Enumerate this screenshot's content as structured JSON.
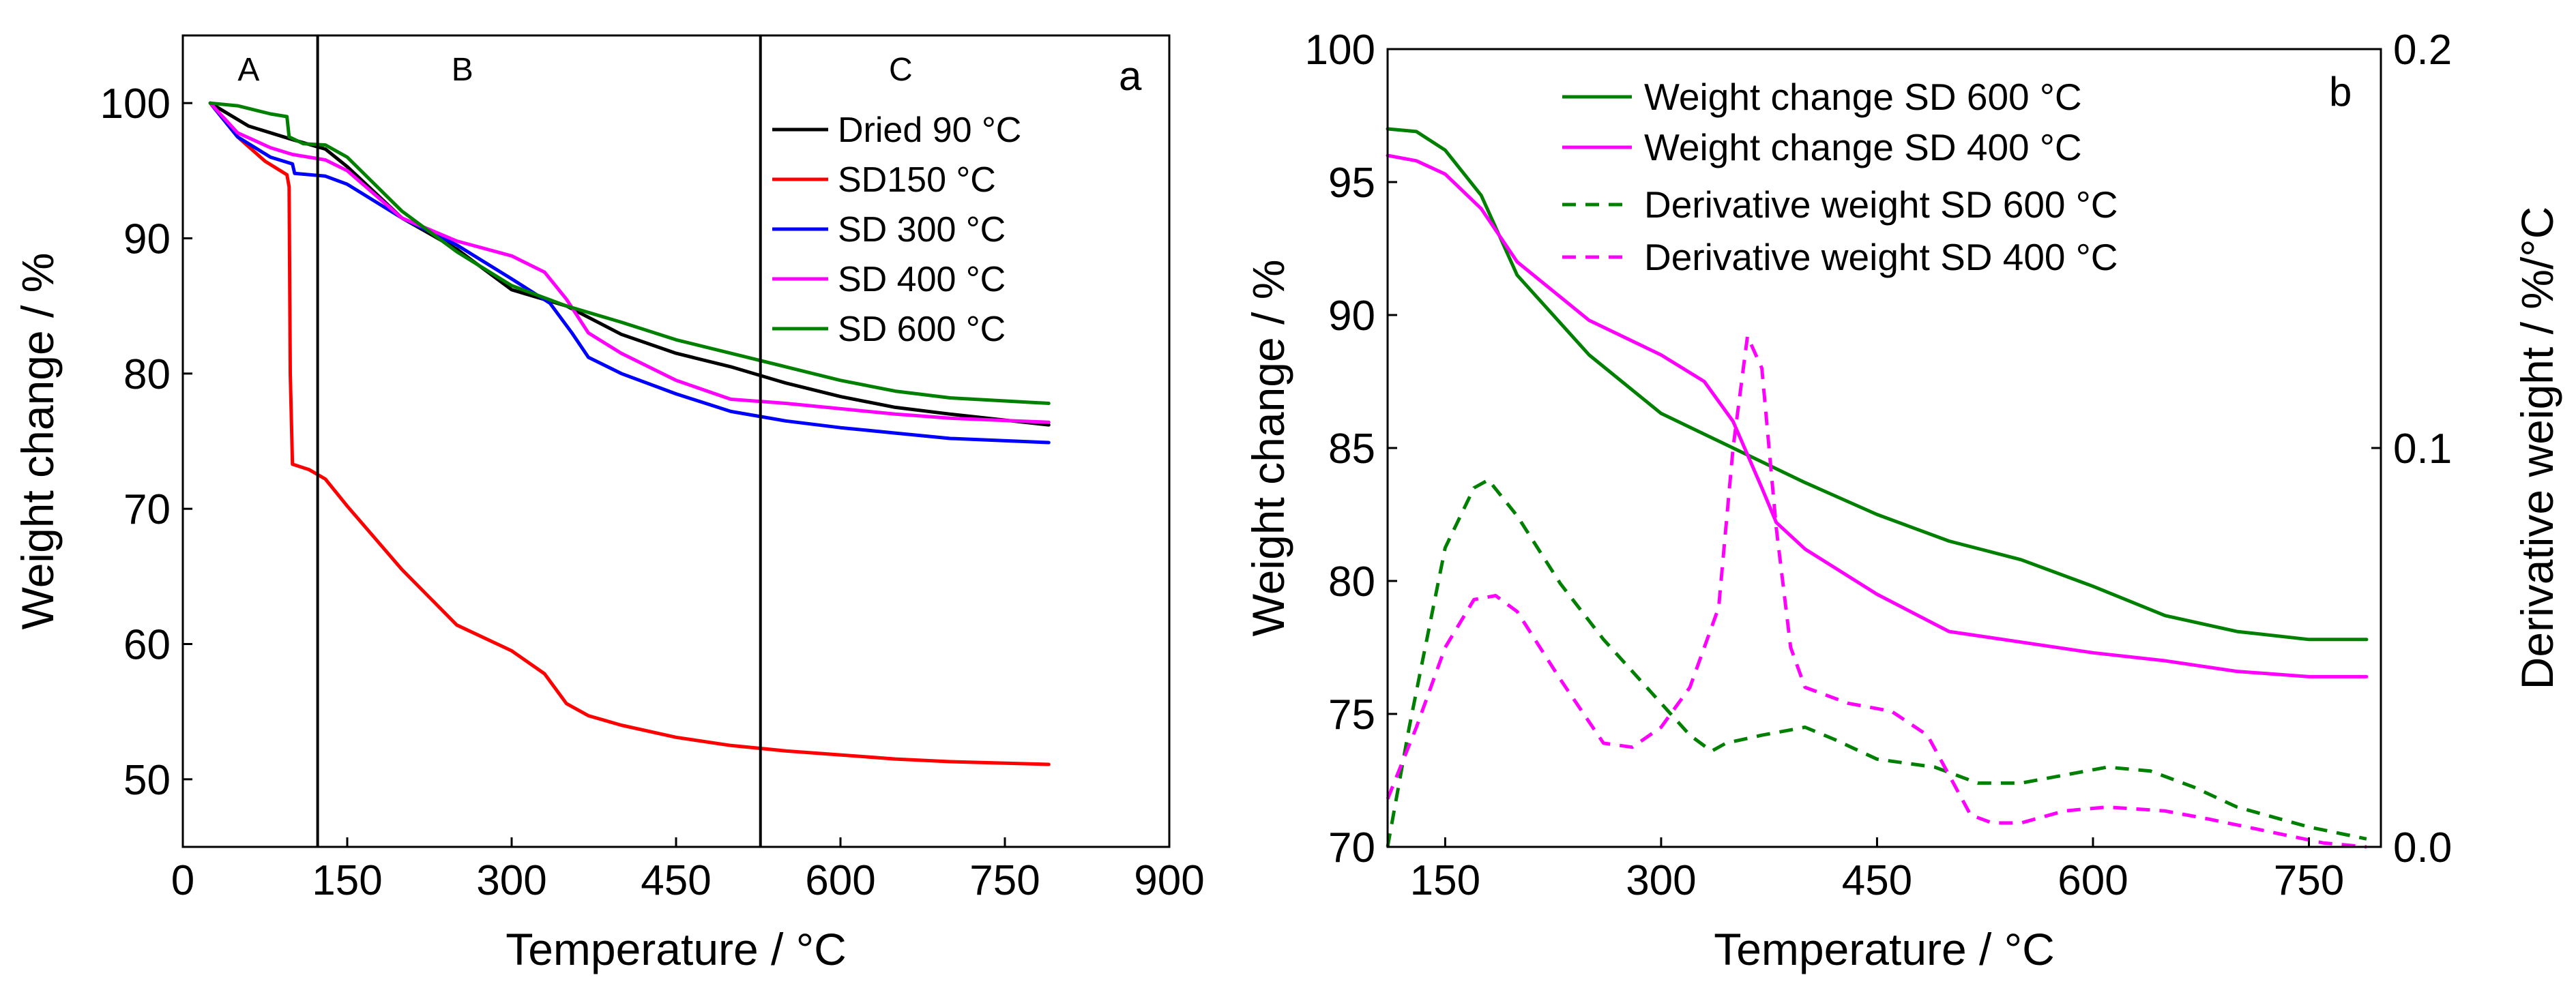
{
  "chart_data": [
    {
      "type": "line",
      "panel_label": "a",
      "xlabel": "Temperature / °C",
      "ylabel": "Weight change / %",
      "xlim": [
        0,
        900
      ],
      "ylim": [
        45,
        105
      ],
      "xticks": [
        0,
        150,
        300,
        450,
        600,
        750,
        900
      ],
      "yticks": [
        50,
        60,
        70,
        80,
        90,
        100
      ],
      "regions": [
        {
          "label": "A",
          "x": 60
        },
        {
          "label": "B",
          "x": 255
        },
        {
          "label": "C",
          "x": 655
        }
      ],
      "region_boundaries": [
        123,
        527
      ],
      "legend_position": "top-right",
      "series": [
        {
          "name": "Dried 90 °C",
          "color": "#000000",
          "points": [
            [
              25,
              100
            ],
            [
              60,
              98.3
            ],
            [
              100,
              97.3
            ],
            [
              130,
              96.6
            ],
            [
              150,
              95.3
            ],
            [
              200,
              91.5
            ],
            [
              250,
              89.2
            ],
            [
              300,
              86.2
            ],
            [
              350,
              85
            ],
            [
              400,
              82.9
            ],
            [
              450,
              81.5
            ],
            [
              500,
              80.5
            ],
            [
              550,
              79.3
            ],
            [
              600,
              78.3
            ],
            [
              650,
              77.5
            ],
            [
              700,
              77
            ],
            [
              790,
              76.2
            ]
          ]
        },
        {
          "name": "SD150 °C",
          "color": "#ff0000",
          "points": [
            [
              25,
              100
            ],
            [
              50,
              97.5
            ],
            [
              75,
              95.7
            ],
            [
              95,
              94.7
            ],
            [
              97,
              93.8
            ],
            [
              98,
              80
            ],
            [
              100,
              73.3
            ],
            [
              115,
              72.9
            ],
            [
              130,
              72.2
            ],
            [
              150,
              70.2
            ],
            [
              200,
              65.5
            ],
            [
              250,
              61.4
            ],
            [
              300,
              59.5
            ],
            [
              330,
              57.8
            ],
            [
              350,
              55.6
            ],
            [
              370,
              54.7
            ],
            [
              400,
              54
            ],
            [
              450,
              53.1
            ],
            [
              500,
              52.5
            ],
            [
              550,
              52.1
            ],
            [
              600,
              51.8
            ],
            [
              650,
              51.5
            ],
            [
              700,
              51.3
            ],
            [
              790,
              51.1
            ]
          ]
        },
        {
          "name": "SD 300 °C",
          "color": "#0000ff",
          "points": [
            [
              25,
              100
            ],
            [
              50,
              97.5
            ],
            [
              80,
              96
            ],
            [
              100,
              95.5
            ],
            [
              102,
              94.8
            ],
            [
              130,
              94.6
            ],
            [
              150,
              94
            ],
            [
              200,
              91.5
            ],
            [
              250,
              89.5
            ],
            [
              300,
              87
            ],
            [
              335,
              85.2
            ],
            [
              355,
              83
            ],
            [
              370,
              81.2
            ],
            [
              400,
              80
            ],
            [
              450,
              78.5
            ],
            [
              500,
              77.2
            ],
            [
              550,
              76.5
            ],
            [
              600,
              76
            ],
            [
              650,
              75.6
            ],
            [
              700,
              75.2
            ],
            [
              790,
              74.9
            ]
          ]
        },
        {
          "name": "SD 400 °C",
          "color": "#ff00ff",
          "points": [
            [
              25,
              100
            ],
            [
              50,
              97.8
            ],
            [
              80,
              96.7
            ],
            [
              100,
              96.2
            ],
            [
              130,
              95.8
            ],
            [
              150,
              95
            ],
            [
              200,
              91.5
            ],
            [
              250,
              89.8
            ],
            [
              300,
              88.7
            ],
            [
              330,
              87.5
            ],
            [
              350,
              85.5
            ],
            [
              370,
              83
            ],
            [
              400,
              81.5
            ],
            [
              450,
              79.5
            ],
            [
              500,
              78.1
            ],
            [
              550,
              77.8
            ],
            [
              600,
              77.4
            ],
            [
              650,
              77
            ],
            [
              700,
              76.7
            ],
            [
              790,
              76.4
            ]
          ]
        },
        {
          "name": "SD 600 °C",
          "color": "#008000",
          "points": [
            [
              25,
              100
            ],
            [
              50,
              99.8
            ],
            [
              80,
              99.2
            ],
            [
              95,
              99
            ],
            [
              97,
              97.5
            ],
            [
              110,
              97
            ],
            [
              130,
              96.9
            ],
            [
              150,
              96
            ],
            [
              200,
              92
            ],
            [
              250,
              89
            ],
            [
              300,
              86.5
            ],
            [
              350,
              85
            ],
            [
              400,
              83.8
            ],
            [
              450,
              82.5
            ],
            [
              500,
              81.5
            ],
            [
              550,
              80.5
            ],
            [
              600,
              79.5
            ],
            [
              650,
              78.7
            ],
            [
              700,
              78.2
            ],
            [
              790,
              77.8
            ]
          ]
        }
      ]
    },
    {
      "type": "line",
      "panel_label": "b",
      "xlabel": "Temperature / °C",
      "ylabel": "Weight change / %",
      "y2label": "Derivative weight / %/°C",
      "xlim": [
        110,
        800
      ],
      "ylim": [
        70,
        100
      ],
      "y2lim": [
        0,
        0.2
      ],
      "xticks": [
        150,
        300,
        450,
        600,
        750
      ],
      "yticks": [
        70,
        75,
        80,
        85,
        90,
        95,
        100
      ],
      "y2ticks": [
        0.0,
        0.1,
        0.2
      ],
      "y2tick_labels": [
        "0.0",
        "0.1",
        "0.2"
      ],
      "legend_position": "top",
      "series": [
        {
          "name": "Weight change SD 600 °C",
          "color": "#008000",
          "axis": "left",
          "style": "solid",
          "points": [
            [
              110,
              97
            ],
            [
              130,
              96.9
            ],
            [
              150,
              96.2
            ],
            [
              175,
              94.5
            ],
            [
              200,
              91.5
            ],
            [
              250,
              88.5
            ],
            [
              300,
              86.3
            ],
            [
              350,
              85
            ],
            [
              400,
              83.7
            ],
            [
              450,
              82.5
            ],
            [
              500,
              81.5
            ],
            [
              550,
              80.8
            ],
            [
              600,
              79.8
            ],
            [
              650,
              78.7
            ],
            [
              700,
              78.1
            ],
            [
              750,
              77.8
            ],
            [
              790,
              77.8
            ]
          ]
        },
        {
          "name": "Weight change SD 400 °C",
          "color": "#ff00ff",
          "axis": "left",
          "style": "solid",
          "points": [
            [
              110,
              96
            ],
            [
              130,
              95.8
            ],
            [
              150,
              95.3
            ],
            [
              175,
              94
            ],
            [
              200,
              92
            ],
            [
              250,
              89.8
            ],
            [
              300,
              88.5
            ],
            [
              330,
              87.5
            ],
            [
              350,
              86
            ],
            [
              370,
              83.5
            ],
            [
              380,
              82.2
            ],
            [
              400,
              81.2
            ],
            [
              450,
              79.5
            ],
            [
              500,
              78.1
            ],
            [
              550,
              77.7
            ],
            [
              600,
              77.3
            ],
            [
              650,
              77
            ],
            [
              700,
              76.6
            ],
            [
              750,
              76.4
            ],
            [
              790,
              76.4
            ]
          ]
        },
        {
          "name": "Derivative weight SD 600 °C",
          "color": "#008000",
          "axis": "right",
          "style": "dashed",
          "points": [
            [
              110,
              0.0
            ],
            [
              125,
              0.03
            ],
            [
              150,
              0.075
            ],
            [
              170,
              0.09
            ],
            [
              180,
              0.092
            ],
            [
              200,
              0.083
            ],
            [
              230,
              0.066
            ],
            [
              260,
              0.052
            ],
            [
              290,
              0.04
            ],
            [
              320,
              0.028
            ],
            [
              335,
              0.024
            ],
            [
              345,
              0.026
            ],
            [
              370,
              0.028
            ],
            [
              400,
              0.03
            ],
            [
              420,
              0.027
            ],
            [
              450,
              0.022
            ],
            [
              490,
              0.02
            ],
            [
              520,
              0.016
            ],
            [
              550,
              0.016
            ],
            [
              580,
              0.018
            ],
            [
              610,
              0.02
            ],
            [
              640,
              0.019
            ],
            [
              670,
              0.015
            ],
            [
              700,
              0.01
            ],
            [
              750,
              0.005
            ],
            [
              790,
              0.002
            ]
          ]
        },
        {
          "name": "Derivative weight SD 400 °C",
          "color": "#ff00ff",
          "axis": "right",
          "style": "dashed",
          "points": [
            [
              110,
              0.012
            ],
            [
              130,
              0.03
            ],
            [
              150,
              0.05
            ],
            [
              170,
              0.062
            ],
            [
              185,
              0.063
            ],
            [
              200,
              0.059
            ],
            [
              230,
              0.042
            ],
            [
              260,
              0.026
            ],
            [
              280,
              0.025
            ],
            [
              300,
              0.03
            ],
            [
              320,
              0.04
            ],
            [
              340,
              0.06
            ],
            [
              350,
              0.1
            ],
            [
              360,
              0.128
            ],
            [
              370,
              0.12
            ],
            [
              380,
              0.08
            ],
            [
              390,
              0.05
            ],
            [
              400,
              0.04
            ],
            [
              430,
              0.036
            ],
            [
              460,
              0.034
            ],
            [
              485,
              0.028
            ],
            [
              500,
              0.018
            ],
            [
              515,
              0.008
            ],
            [
              530,
              0.006
            ],
            [
              550,
              0.006
            ],
            [
              580,
              0.009
            ],
            [
              610,
              0.01
            ],
            [
              650,
              0.009
            ],
            [
              680,
              0.007
            ],
            [
              720,
              0.004
            ],
            [
              760,
              0.001
            ],
            [
              790,
              0.0
            ]
          ]
        }
      ]
    }
  ]
}
